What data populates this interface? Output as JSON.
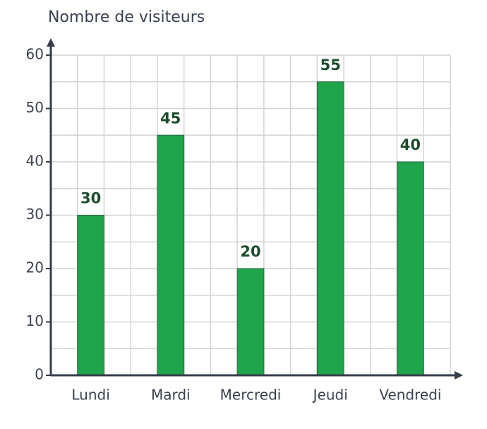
{
  "chart_data": {
    "type": "bar",
    "ylabel": "Nombre de visiteurs",
    "categories": [
      "Lundi",
      "Mardi",
      "Mercredi",
      "Jeudi",
      "Vendredi"
    ],
    "values": [
      30,
      45,
      20,
      55,
      40
    ],
    "color": "#1fa44b",
    "ylim": [
      0,
      60
    ],
    "yticks": [
      0,
      10,
      20,
      30,
      40,
      50,
      60
    ],
    "grid": true
  }
}
